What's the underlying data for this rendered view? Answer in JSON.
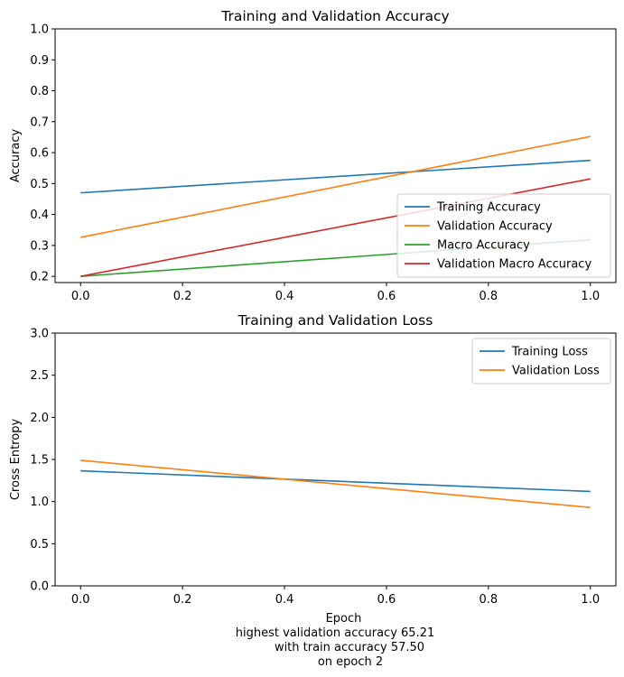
{
  "chart_data": [
    {
      "type": "line",
      "title": "Training and Validation Accuracy",
      "xlabel": "",
      "ylabel": "Accuracy",
      "xlim": [
        -0.05,
        1.05
      ],
      "ylim": [
        0.18,
        1.0
      ],
      "xticks": [
        0.0,
        0.2,
        0.4,
        0.6,
        0.8,
        1.0
      ],
      "xtick_labels": [
        "0.0",
        "0.2",
        "0.4",
        "0.6",
        "0.8",
        "1.0"
      ],
      "yticks": [
        0.2,
        0.3,
        0.4,
        0.5,
        0.6,
        0.7,
        0.8,
        0.9,
        1.0
      ],
      "ytick_labels": [
        "0.2",
        "0.3",
        "0.4",
        "0.5",
        "0.6",
        "0.7",
        "0.8",
        "0.9",
        "1.0"
      ],
      "legend_position": "lower-right",
      "grid": false,
      "series": [
        {
          "name": "Training Accuracy",
          "color": "#1f77b4",
          "x": [
            0,
            1
          ],
          "y": [
            0.47,
            0.575
          ]
        },
        {
          "name": "Validation Accuracy",
          "color": "#ff7f0e",
          "x": [
            0,
            1
          ],
          "y": [
            0.326,
            0.6521
          ]
        },
        {
          "name": "Macro Accuracy",
          "color": "#2ca02c",
          "x": [
            0,
            1
          ],
          "y": [
            0.2,
            0.318
          ]
        },
        {
          "name": "Validation Macro Accuracy",
          "color": "#d62728",
          "x": [
            0,
            1
          ],
          "y": [
            0.2,
            0.515
          ]
        }
      ]
    },
    {
      "type": "line",
      "title": "Training and Validation Loss",
      "xlabel": "Epoch",
      "ylabel": "Cross Entropy",
      "xlim": [
        -0.05,
        1.05
      ],
      "ylim": [
        0.0,
        3.0
      ],
      "xticks": [
        0.0,
        0.2,
        0.4,
        0.6,
        0.8,
        1.0
      ],
      "xtick_labels": [
        "0.0",
        "0.2",
        "0.4",
        "0.6",
        "0.8",
        "1.0"
      ],
      "yticks": [
        0.0,
        0.5,
        1.0,
        1.5,
        2.0,
        2.5,
        3.0
      ],
      "ytick_labels": [
        "0.0",
        "0.5",
        "1.0",
        "1.5",
        "2.0",
        "2.5",
        "3.0"
      ],
      "legend_position": "upper-right",
      "grid": false,
      "series": [
        {
          "name": "Training Loss",
          "color": "#1f77b4",
          "x": [
            0,
            1
          ],
          "y": [
            1.365,
            1.12
          ]
        },
        {
          "name": "Validation Loss",
          "color": "#ff7f0e",
          "x": [
            0,
            1
          ],
          "y": [
            1.49,
            0.93
          ]
        }
      ]
    }
  ],
  "caption": {
    "lines": [
      "highest validation accuracy 65.21",
      "with train accuracy 57.50",
      "on epoch 2"
    ]
  }
}
